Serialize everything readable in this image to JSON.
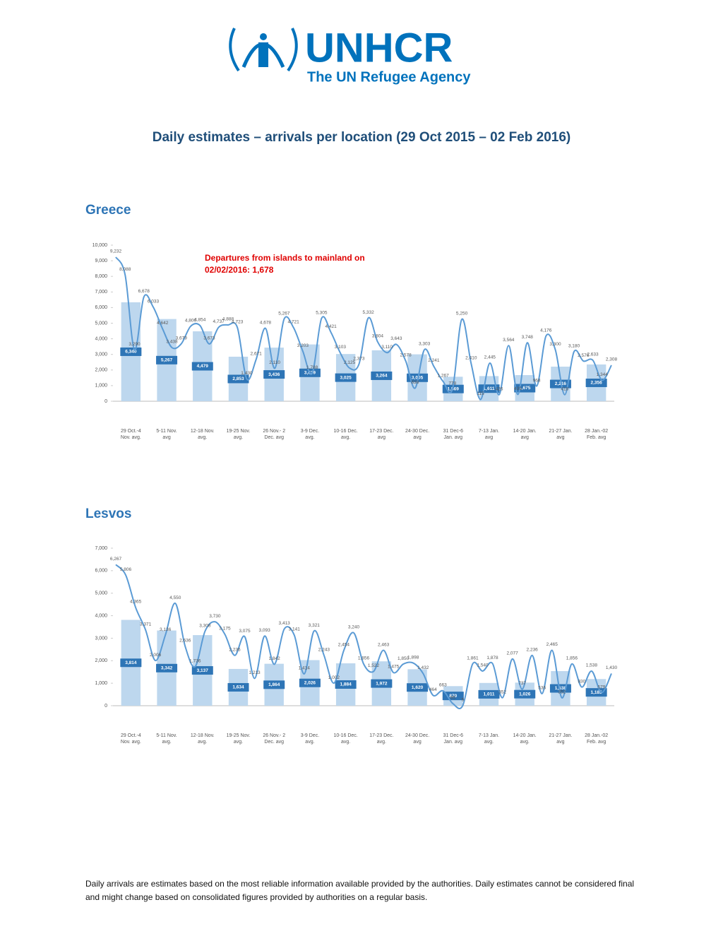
{
  "header": {
    "logo": "UNHCR",
    "tagline": "The UN Refugee Agency",
    "title": "Daily estimates – arrivals per location (29 Oct 2015 – 02 Feb 2016)"
  },
  "chart_data": [
    {
      "type": "bar-line",
      "title": "Greece",
      "annotation": "Departures from islands to mainland on 02/02/2016: 1,678",
      "categories": [
        "29 Oct.-4 Nov. avg.",
        "5-11 Nov. avg",
        "12-18 Nov. avg.",
        "19-25 Nov. avg.",
        "26 Nov.- 2 Dec. avg",
        "3-9 Dec. avg.",
        "10-16 Dec. avg.",
        "17-23 Dec. avg",
        "24-30 Dec. avg",
        "31 Dec-6 Jan. avg",
        "7-13 Jan. avg",
        "14-20 Jan. avg",
        "21-27 Jan. avg",
        "28 Jan.-02 Feb. avg"
      ],
      "values": [
        6340,
        5267,
        4479,
        2853,
        3436,
        3639,
        3025,
        3264,
        3005,
        1569,
        1611,
        1675,
        2216,
        2356
      ],
      "value_labels": [
        "6,340",
        "5,267",
        "4,479",
        "2,853",
        "3,436",
        "3,639",
        "3,025",
        "3,264",
        "3,005",
        "1,569",
        "1,611",
        "1,675",
        "2,216",
        "2,356"
      ],
      "bar_color": "#bdd7ee",
      "daily": {
        "color": "#5b9bd5",
        "values": [
          9232,
          8088,
          3290,
          6678,
          6033,
          4642,
          3438,
          3679,
          4800,
          4854,
          3673,
          4737,
          4888,
          4723,
          1430,
          2671,
          4678,
          2110,
          5267,
          4721,
          3203,
          1788,
          5305,
          4421,
          3103,
          2125,
          2373,
          5332,
          3804,
          3110,
          3643,
          2578,
          838,
          3303,
          2241,
          1267,
          778,
          5250,
          2410,
          115,
          2445,
          426,
          3564,
          435,
          3748,
          968,
          4176,
          3300,
          418,
          3180,
          2576,
          2633,
          1344,
          2308
        ],
        "value_labels": [
          "9,232",
          "8,088",
          "3,290",
          "6,678",
          "6,033",
          "4,642",
          "3,438",
          "3,679",
          "4,800",
          "4,854",
          "3,673",
          "4,737",
          "4,888",
          "4,723",
          "1,430",
          "2,671",
          "4,678",
          "2,110",
          "5,267",
          "4,721",
          "3,203",
          "1,788",
          "5,305",
          "4,421",
          "3,103",
          "2,125",
          "2,373",
          "5,332",
          "3,804",
          "3,110",
          "3,643",
          "2,578",
          "838",
          "3,303",
          "2,241",
          "1,267",
          "778",
          "5,250",
          "2,410",
          "115",
          "2,445",
          "426",
          "3,564",
          "435",
          "3,748",
          "968",
          "4,176",
          "3,300",
          "418",
          "3,180",
          "2,576",
          "2,633",
          "1,344",
          "2,308"
        ]
      },
      "ylim": [
        0,
        10000
      ],
      "yticks": [
        0,
        {
          "value": 1000,
          "label": "1,000"
        },
        {
          "value": 2000,
          "label": "2,000"
        },
        {
          "value": 3000,
          "label": "3,000"
        },
        {
          "value": 4000,
          "label": "4,000"
        },
        {
          "value": 5000,
          "label": "5,000"
        },
        {
          "value": 6000,
          "label": "6,000"
        },
        {
          "value": 7000,
          "label": "7,000"
        },
        {
          "value": 8000,
          "label": "8,000"
        },
        {
          "value": 9000,
          "label": "9,000"
        },
        {
          "value": 10000,
          "label": "10,000"
        }
      ]
    },
    {
      "type": "bar-line",
      "title": "Lesvos",
      "categories": [
        "29 Oct.-4 Nov. avg.",
        "5-11 Nov. avg.",
        "12-18 Nov. avg.",
        "19-25 Nov. avg.",
        "26 Nov.- 2 Dec. avg",
        "3-9 Dec. avg.",
        "10-16 Dec. avg.",
        "17-23 Dec. avg.",
        "24-30 Dec. avg",
        "31 Dec-6 Jan. avg",
        "7-13 Jan. avg.",
        "14-20 Jan. avg.",
        "21-27 Jan. avg",
        "28 Jan.-02 Feb. avg"
      ],
      "values": [
        3814,
        3342,
        3137,
        1634,
        1864,
        2026,
        1884,
        1972,
        1620,
        870,
        1011,
        1026,
        1538,
        1185
      ],
      "value_labels": [
        "3,814",
        "3,342",
        "3,137",
        "1,634",
        "1,864",
        "2,026",
        "1,884",
        "1,972",
        "1,620",
        "870",
        "1,011",
        "1,026",
        "1,538",
        "1,185"
      ],
      "bar_color": "#bdd7ee",
      "daily": {
        "color": "#5b9bd5",
        "values": [
          6267,
          5806,
          4365,
          3371,
          2006,
          3136,
          4550,
          2636,
          1736,
          3308,
          3730,
          3175,
          2236,
          3075,
          1213,
          3093,
          1842,
          3413,
          3141,
          1414,
          3321,
          2243,
          1002,
          2454,
          3240,
          1856,
          1522,
          2463,
          1475,
          1850,
          1898,
          1432,
          464,
          663,
          95,
          5,
          1861,
          1540,
          1878,
          352,
          2077,
          737,
          2236,
          536,
          2465,
          352,
          1856,
          830,
          1538,
          579,
          1430
        ],
        "value_labels": [
          "6,267",
          "5,806",
          "4,365",
          "3,371",
          "2,006",
          "3,136",
          "4,550",
          "2,636",
          "1,736",
          "3,308",
          "3,730",
          "3,175",
          "2,236",
          "3,075",
          "1,213",
          "3,093",
          "1,842",
          "3,413",
          "3,141",
          "1,414",
          "3,321",
          "2,243",
          "1,002",
          "2,454",
          "3,240",
          "1,856",
          "1,522",
          "2,463",
          "1,475",
          "1,850",
          "1,898",
          "1,432",
          "464",
          "663",
          "95",
          "5",
          "1,861",
          "1,540",
          "1,878",
          "352",
          "2,077",
          "737",
          "2,236",
          "536",
          "2,465",
          "352",
          "1,856",
          "830",
          "1,538",
          "579",
          "1,430"
        ]
      },
      "ylim": [
        0,
        7000
      ],
      "yticks": [
        0,
        {
          "value": 1000,
          "label": "1,000"
        },
        {
          "value": 2000,
          "label": "2,000"
        },
        {
          "value": 3000,
          "label": "3,000"
        },
        {
          "value": 4000,
          "label": "4,000"
        },
        {
          "value": 5000,
          "label": "5,000"
        },
        {
          "value": 6000,
          "label": "6,000"
        },
        {
          "value": 7000,
          "label": "7,000"
        }
      ]
    }
  ],
  "footnote": "Daily arrivals are estimates based on the most reliable information available provided by the authorities. Daily estimates cannot be considered final and might change based on consolidated figures provided by authorities on a regular basis."
}
